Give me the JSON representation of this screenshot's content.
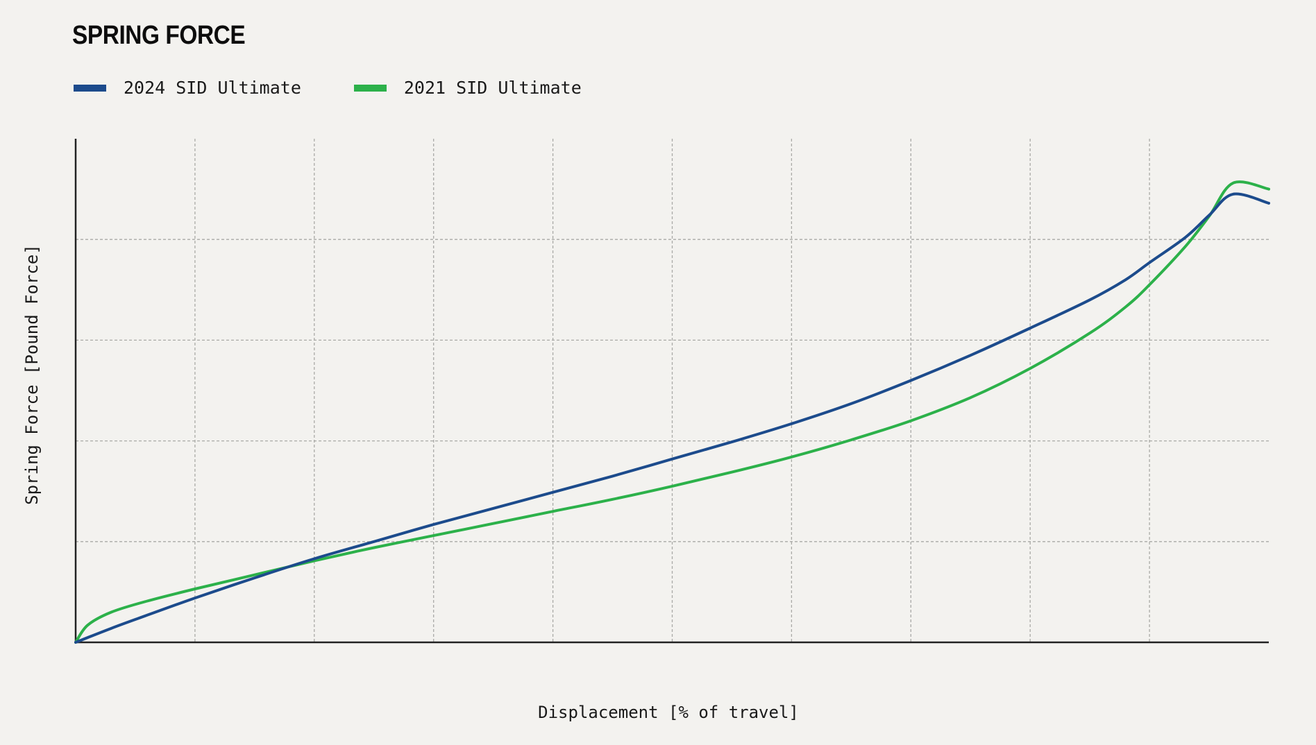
{
  "chart_data": {
    "type": "line",
    "title": "SPRING FORCE",
    "xlabel": "Displacement [% of travel]",
    "ylabel": "Spring Force [Pound Force]",
    "xlim": [
      0,
      100
    ],
    "ylim": [
      0,
      5
    ],
    "grid": true,
    "legend": "top-left",
    "series": [
      {
        "name": "2024 SID Ultimate",
        "color": "#1c4b8c",
        "x": [
          0,
          3,
          6,
          10,
          15,
          20,
          25,
          30,
          35,
          40,
          45,
          50,
          55,
          60,
          65,
          70,
          75,
          80,
          85,
          88,
          90,
          93,
          95,
          97,
          100
        ],
        "y": [
          0,
          0.14,
          0.27,
          0.44,
          0.64,
          0.83,
          1.0,
          1.17,
          1.33,
          1.49,
          1.65,
          1.82,
          1.99,
          2.17,
          2.37,
          2.6,
          2.85,
          3.12,
          3.4,
          3.6,
          3.77,
          4.02,
          4.24,
          4.45,
          4.36
        ]
      },
      {
        "name": "2021 SID Ultimate",
        "color": "#2cb14a",
        "x": [
          0,
          1,
          3,
          6,
          10,
          15,
          20,
          25,
          30,
          35,
          40,
          45,
          50,
          55,
          60,
          65,
          70,
          75,
          80,
          85,
          88,
          90,
          93,
          95,
          97,
          100
        ],
        "y": [
          0,
          0.17,
          0.3,
          0.41,
          0.53,
          0.67,
          0.81,
          0.94,
          1.06,
          1.18,
          1.3,
          1.42,
          1.55,
          1.69,
          1.84,
          2.01,
          2.2,
          2.43,
          2.72,
          3.07,
          3.33,
          3.55,
          3.93,
          4.23,
          4.56,
          4.5
        ]
      }
    ]
  }
}
